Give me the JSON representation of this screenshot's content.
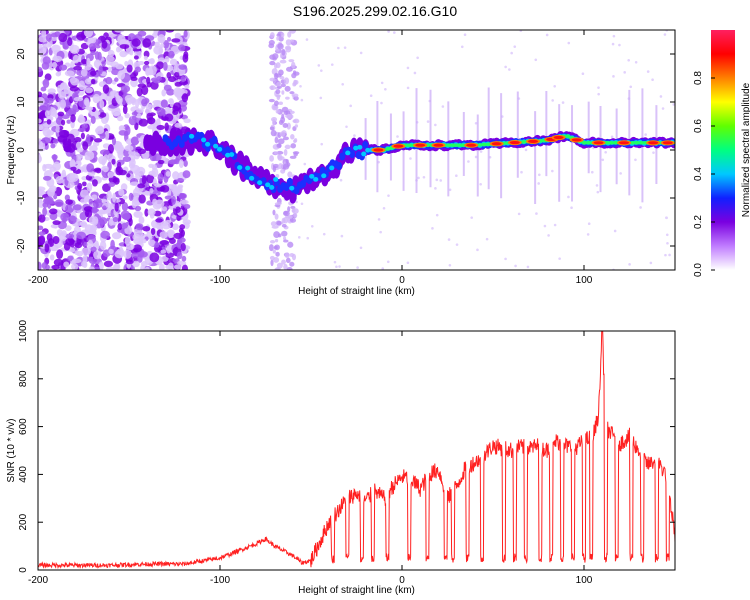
{
  "title": "S196.2025.299.02.16.G10",
  "chart_data": [
    {
      "type": "heatmap",
      "xlabel": "Height of straight line (km)",
      "ylabel": "Frequency (Hz)",
      "xlim": [
        -200,
        150
      ],
      "ylim": [
        -25,
        25
      ],
      "xticks": [
        "-200",
        "-100",
        "0",
        "100"
      ],
      "yticks": [
        "-20",
        "-10",
        "0",
        "10",
        "20"
      ],
      "colorbar": {
        "label": "Normalized spectral amplitude",
        "range": [
          0,
          1
        ],
        "ticks": [
          "0.0",
          "0.2",
          "0.4",
          "0.6",
          "0.8"
        ],
        "colors": [
          "#ffffff",
          "#c07cff",
          "#7a00e0",
          "#1020ff",
          "#00c8ff",
          "#00ff80",
          "#60ff00",
          "#ffff00",
          "#ff8000",
          "#ff0000",
          "#ff2060"
        ]
      },
      "ridge": [
        {
          "x": -140,
          "f": 1
        },
        {
          "x": -120,
          "f": 2
        },
        {
          "x": -110,
          "f": 2
        },
        {
          "x": -100,
          "f": 1
        },
        {
          "x": -90,
          "f": -3
        },
        {
          "x": -80,
          "f": -6
        },
        {
          "x": -70,
          "f": -7
        },
        {
          "x": -60,
          "f": -8
        },
        {
          "x": -50,
          "f": -6
        },
        {
          "x": -40,
          "f": -4
        },
        {
          "x": -30,
          "f": -1
        },
        {
          "x": -20,
          "f": 0
        },
        {
          "x": -10,
          "f": 0
        },
        {
          "x": 0,
          "f": 1
        },
        {
          "x": 20,
          "f": 1
        },
        {
          "x": 40,
          "f": 1
        },
        {
          "x": 60,
          "f": 1.5
        },
        {
          "x": 80,
          "f": 2
        },
        {
          "x": 90,
          "f": 3
        },
        {
          "x": 100,
          "f": 1.5
        },
        {
          "x": 120,
          "f": 1.5
        },
        {
          "x": 150,
          "f": 1.5
        }
      ]
    },
    {
      "type": "line",
      "xlabel": "Height of straight line (km)",
      "ylabel": "SNR (10 * v/v)",
      "xlim": [
        -200,
        150
      ],
      "ylim": [
        0,
        1000
      ],
      "xticks": [
        "-200",
        "-100",
        "0",
        "100"
      ],
      "yticks": [
        "0",
        "200",
        "400",
        "600",
        "800",
        "1000"
      ],
      "color": "#ff2020",
      "series": [
        {
          "name": "SNR",
          "x": [
            -200,
            -180,
            -160,
            -140,
            -120,
            -100,
            -90,
            -80,
            -75,
            -70,
            -60,
            -55,
            -50,
            -45,
            -40,
            -35,
            -30,
            -25,
            -20,
            -15,
            -10,
            -5,
            0,
            5,
            10,
            15,
            20,
            25,
            30,
            35,
            40,
            45,
            50,
            55,
            60,
            65,
            70,
            75,
            80,
            85,
            90,
            95,
            100,
            105,
            108,
            110,
            112,
            115,
            120,
            125,
            130,
            135,
            140,
            145,
            150
          ],
          "values": [
            20,
            20,
            20,
            25,
            25,
            50,
            80,
            110,
            130,
            100,
            60,
            30,
            40,
            120,
            200,
            250,
            300,
            320,
            290,
            330,
            300,
            350,
            390,
            380,
            340,
            400,
            420,
            300,
            350,
            430,
            450,
            480,
            520,
            510,
            500,
            515,
            510,
            520,
            500,
            540,
            520,
            510,
            540,
            560,
            650,
            1000,
            600,
            570,
            530,
            560,
            500,
            440,
            460,
            400,
            150
          ]
        }
      ]
    }
  ]
}
